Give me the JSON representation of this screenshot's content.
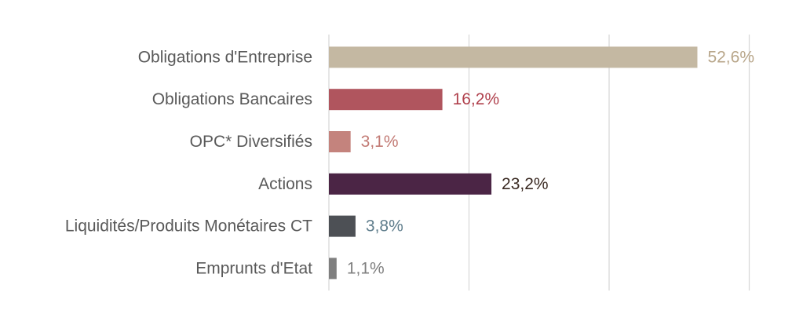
{
  "chart_data": {
    "type": "bar",
    "orientation": "horizontal",
    "title": "",
    "xlabel": "",
    "ylabel": "",
    "xlim": [
      0,
      60
    ],
    "grid": true,
    "legend": "none",
    "categories": [
      "Obligations d'Entreprise",
      "Obligations Bancaires",
      "OPC* Diversifiés",
      "Actions",
      "Liquidités/Produits Monétaires CT",
      "Emprunts d'Etat"
    ],
    "values": [
      52.6,
      16.2,
      3.1,
      23.2,
      3.8,
      1.1
    ],
    "value_labels": [
      "52,6%",
      "16,2%",
      "3,1%",
      "23,2%",
      "3,8%",
      "1,1%"
    ],
    "bar_colors": [
      "#c4b8a2",
      "#b0555e",
      "#c4837d",
      "#4b2545",
      "#4d5055",
      "#7f7f7f"
    ],
    "label_colors": [
      "#b8a68a",
      "#b0414d",
      "#c27a74",
      "#3a2a22",
      "#5f7d8c",
      "#7f7f7f"
    ]
  }
}
